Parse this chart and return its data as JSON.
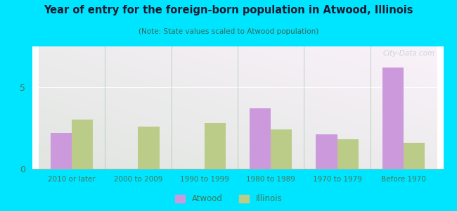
{
  "title": "Year of entry for the foreign-born population in Atwood, Illinois",
  "subtitle": "(Note: State values scaled to Atwood population)",
  "categories": [
    "2010 or later",
    "2000 to 2009",
    "1990 to 1999",
    "1980 to 1989",
    "1970 to 1979",
    "Before 1970"
  ],
  "atwood_values": [
    2.2,
    0,
    0,
    3.7,
    2.1,
    6.2
  ],
  "illinois_values": [
    3.0,
    2.6,
    2.8,
    2.4,
    1.8,
    1.6
  ],
  "atwood_color": "#cc99dd",
  "illinois_color": "#bbcc88",
  "background_outer": "#00e5ff",
  "ylim": [
    0,
    7.5
  ],
  "yticks": [
    0,
    5
  ],
  "bar_width": 0.32,
  "legend_atwood": "Atwood",
  "legend_illinois": "Illinois",
  "watermark": "City-Data.com",
  "title_color": "#1a1a2e",
  "subtitle_color": "#336655",
  "tick_color": "#447755"
}
